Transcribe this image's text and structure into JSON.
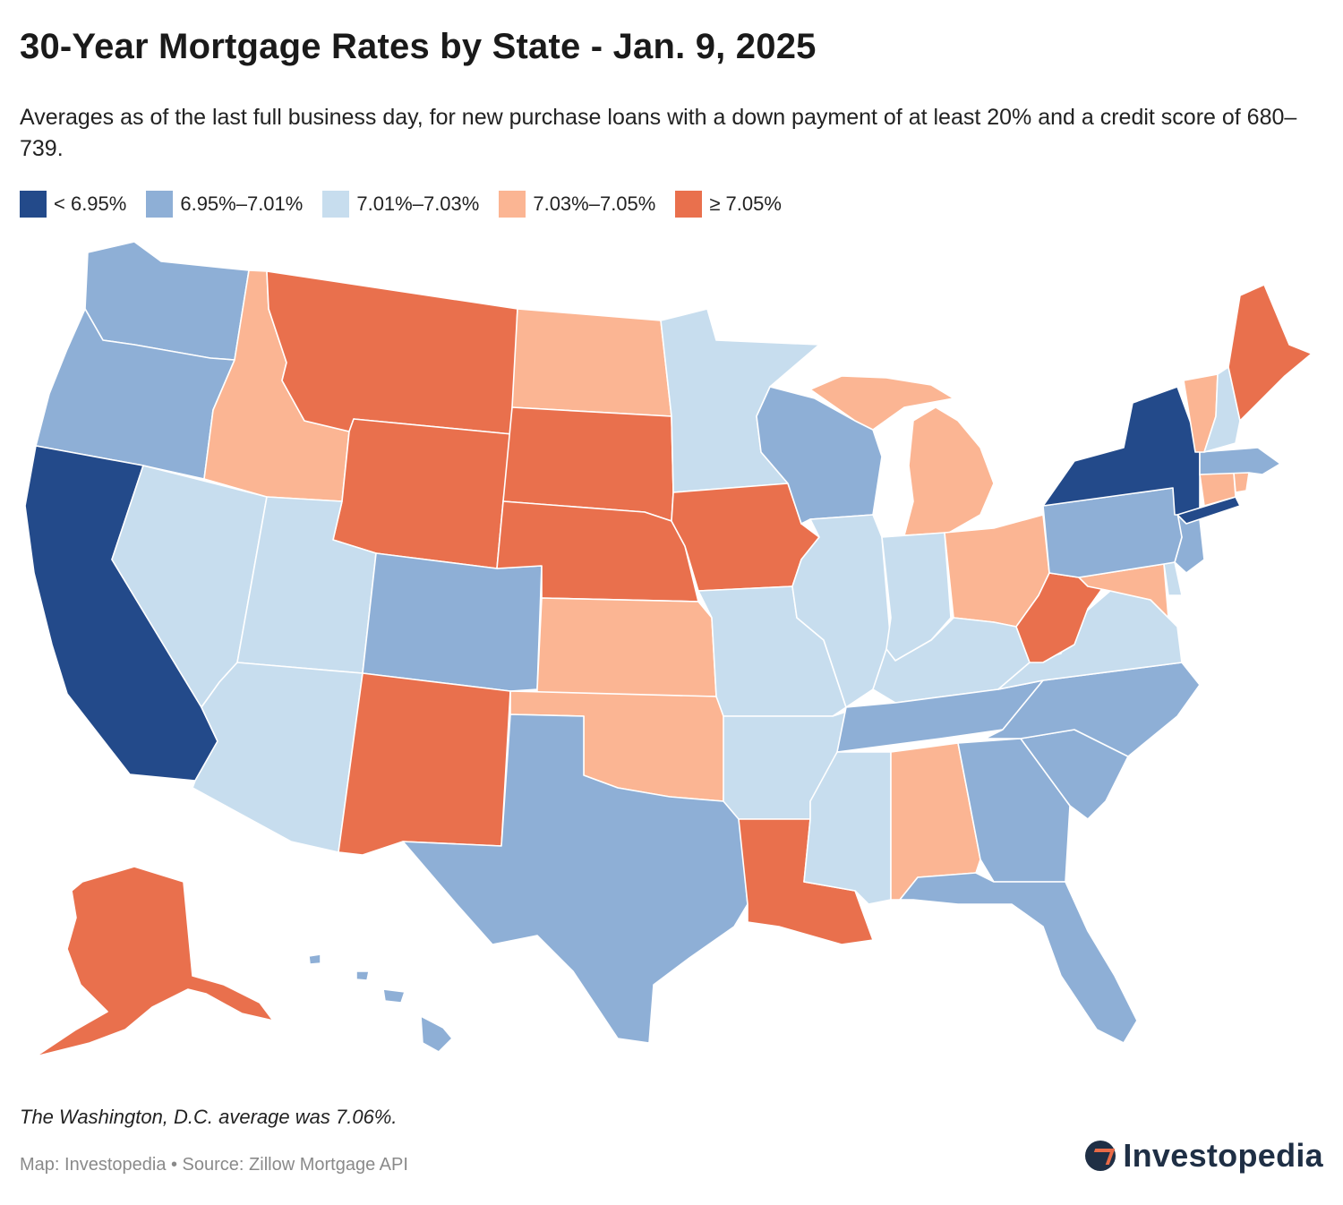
{
  "title": "30-Year Mortgage Rates by State - Jan. 9, 2025",
  "subtitle": "Averages as of the last full business day, for new purchase loans with a down payment of at least 20% and a credit score of 680–739.",
  "colors": {
    "c1": "#234a8a",
    "c2": "#8eafd6",
    "c3": "#c7ddee",
    "c4": "#fbb593",
    "c5": "#e9704d"
  },
  "legend": [
    {
      "label": "< 6.95%",
      "color": "#234a8a"
    },
    {
      "label": "6.95%–7.01%",
      "color": "#8eafd6"
    },
    {
      "label": "7.01%–7.03%",
      "color": "#c7ddee"
    },
    {
      "label": "7.03%–7.05%",
      "color": "#fbb593"
    },
    {
      "label": "≥ 7.05%",
      "color": "#e9704d"
    }
  ],
  "states": {
    "WA": "6.95%–7.01%",
    "OR": "6.95%–7.01%",
    "CA": "< 6.95%",
    "NV": "7.01%–7.03%",
    "ID": "7.03%–7.05%",
    "MT": "≥ 7.05%",
    "WY": "≥ 7.05%",
    "UT": "7.01%–7.03%",
    "AZ": "7.01%–7.03%",
    "CO": "6.95%–7.01%",
    "NM": "≥ 7.05%",
    "ND": "7.03%–7.05%",
    "SD": "≥ 7.05%",
    "NE": "≥ 7.05%",
    "KS": "7.03%–7.05%",
    "OK": "7.03%–7.05%",
    "TX": "6.95%–7.01%",
    "MN": "7.01%–7.03%",
    "IA": "≥ 7.05%",
    "MO": "7.01%–7.03%",
    "AR": "7.01%–7.03%",
    "LA": "≥ 7.05%",
    "WI": "6.95%–7.01%",
    "IL": "7.01%–7.03%",
    "MI": "7.03%–7.05%",
    "IN": "7.01%–7.03%",
    "OH": "7.03%–7.05%",
    "KY": "7.01%–7.03%",
    "TN": "6.95%–7.01%",
    "MS": "7.01%–7.03%",
    "AL": "7.03%–7.05%",
    "GA": "6.95%–7.01%",
    "FL": "6.95%–7.01%",
    "SC": "6.95%–7.01%",
    "NC": "6.95%–7.01%",
    "VA": "7.01%–7.03%",
    "WV": "≥ 7.05%",
    "MD": "7.03%–7.05%",
    "DE": "7.01%–7.03%",
    "NJ": "6.95%–7.01%",
    "PA": "6.95%–7.01%",
    "NY": "< 6.95%",
    "CT": "7.03%–7.05%",
    "RI": "7.03%–7.05%",
    "MA": "6.95%–7.01%",
    "VT": "7.03%–7.05%",
    "NH": "7.01%–7.03%",
    "ME": "≥ 7.05%",
    "AK": "≥ 7.05%",
    "HI": "6.95%–7.01%"
  },
  "note": "The Washington, D.C. average was 7.06%.",
  "source": "Map: Investopedia • Source: Zillow Mortgage API",
  "logo": "Investopedia"
}
